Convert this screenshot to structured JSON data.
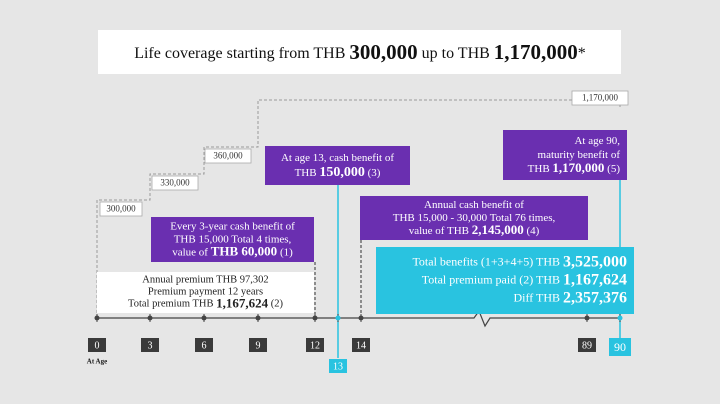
{
  "title": [
    "Life coverage starting from THB ",
    "300,000",
    " up to THB ",
    "1,170,000",
    "*"
  ],
  "coverage_labels": [
    "300,000",
    "330,000",
    "360,000",
    "1,170,000"
  ],
  "benefit_boxes": [
    {
      "lines": [
        [
          "Every 3-year cash benefit of"
        ],
        [
          "THB 15,000  Total 4 times,"
        ],
        [
          "value of ",
          "THB 60,000",
          " (1)"
        ]
      ]
    },
    {
      "lines": [
        [
          "At age 13, cash benefit of"
        ],
        [
          "THB ",
          "150,000",
          " (3)"
        ]
      ]
    },
    {
      "lines": [
        [
          "Annual cash benefit of"
        ],
        [
          "THB 15,000 - 30,000  Total 76 times,"
        ],
        [
          "value of THB ",
          "2,145,000",
          " (4)"
        ]
      ]
    },
    {
      "lines": [
        [
          "At age 90,"
        ],
        [
          "maturity benefit of"
        ],
        [
          "THB ",
          "1,170,000",
          " (5)"
        ]
      ]
    }
  ],
  "premium_box": {
    "lines": [
      [
        "Annual premium THB 97,302"
      ],
      [
        "Premium payment 12 years"
      ],
      [
        "Total premium THB ",
        "1,167,624",
        " (2)"
      ]
    ]
  },
  "summary_box": {
    "lines": [
      [
        "Total benefits (1+3+4+5) THB ",
        "3,525,000"
      ],
      [
        "Total premium paid (2) THB ",
        "1,167,624"
      ],
      [
        "Diff THB ",
        "2,357,376"
      ]
    ]
  },
  "ages": [
    "0",
    "3",
    "6",
    "9",
    "12",
    "13",
    "14",
    "89",
    "90"
  ],
  "axis_label": "At Age"
}
